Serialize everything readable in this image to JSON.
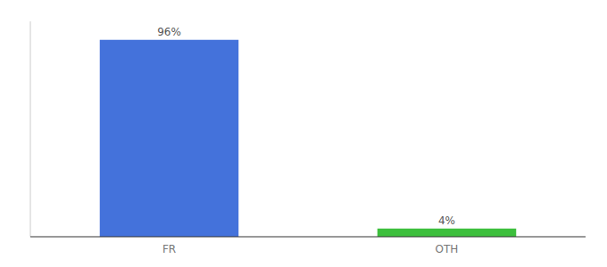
{
  "chart_data": {
    "type": "bar",
    "categories": [
      "FR",
      "OTH"
    ],
    "values": [
      96,
      4
    ],
    "value_labels": [
      "96%",
      "4%"
    ],
    "colors": [
      "#4472db",
      "#3dbf3d"
    ],
    "ylim": [
      0,
      105
    ],
    "tick_labels": "x",
    "data_labels": true,
    "grid": false
  }
}
